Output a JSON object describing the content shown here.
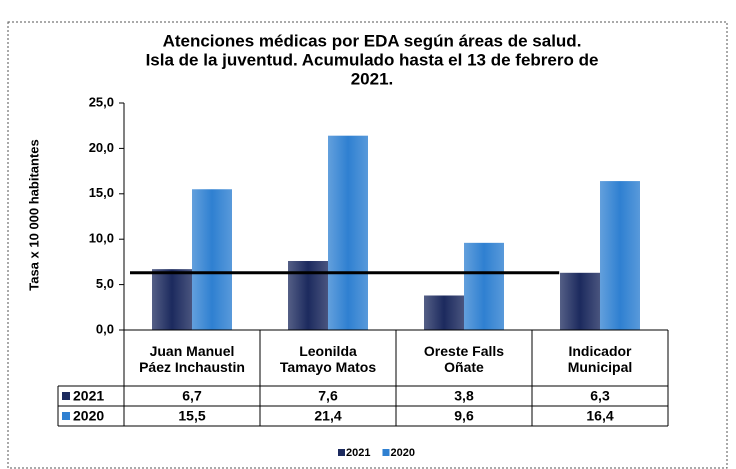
{
  "chart_data": {
    "type": "bar",
    "title": [
      "Atenciones médicas por EDA según áreas de salud.",
      "Isla de la juventud. Acumulado hasta el 13 de febrero de",
      "2021."
    ],
    "ylabel": "Tasa x 10 000 habitantes",
    "categories": [
      "Juan Manuel Páez Inchaustin",
      "Leonilda Tamayo Matos",
      "Oreste Falls Oñate",
      "Indicador Municipal"
    ],
    "series": [
      {
        "name": "2021",
        "color": "#1c2a5e",
        "values": [
          6.7,
          7.6,
          3.8,
          6.3
        ],
        "value_labels": [
          "6,7",
          "7,6",
          "3,8",
          "6,3"
        ]
      },
      {
        "name": "2020",
        "color": "#2f80d1",
        "values": [
          15.5,
          21.4,
          9.6,
          16.4
        ],
        "value_labels": [
          "15,5",
          "21,4",
          "9,6",
          "16,4"
        ]
      }
    ],
    "ylim": [
      0,
      25
    ],
    "yticks": [
      {
        "value": 0,
        "label": "0,0"
      },
      {
        "value": 5,
        "label": "5,0"
      },
      {
        "value": 10,
        "label": "10,0"
      },
      {
        "value": 15,
        "label": "15,0"
      },
      {
        "value": 20,
        "label": "20,0"
      },
      {
        "value": 25,
        "label": "25,0"
      }
    ],
    "legend": "bottom"
  }
}
